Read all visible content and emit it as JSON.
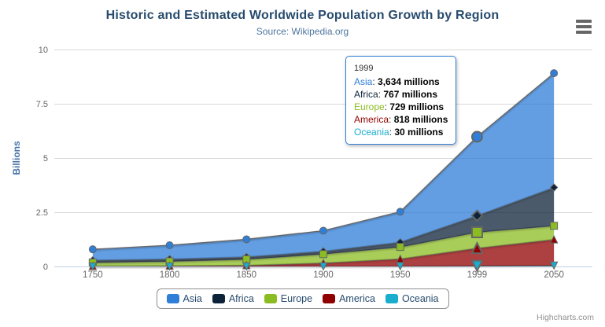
{
  "chart": {
    "title": "Historic and Estimated Worldwide Population Growth by Region",
    "subtitle": "Source: Wikipedia.org",
    "credits": "Highcharts.com"
  },
  "colors": {
    "title": "#274b6d",
    "subtitle": "#4d759e",
    "axis_label": "#666666",
    "axis_title": "#4572A7",
    "gridline": "#d8d8d8",
    "axis_line": "#c0d0e0",
    "series_line": "#666666",
    "legend_text": "#274b6d",
    "legend_border": "#909090",
    "tooltip_border": "#2f7ed8",
    "burger_icon": "#666666",
    "credits_text": "#909090"
  },
  "chart_data": {
    "type": "area",
    "stacking": "normal",
    "title": "Historic and Estimated Worldwide Population Growth by Region",
    "subtitle": "Source: Wikipedia.org",
    "categories": [
      "1750",
      "1800",
      "1850",
      "1900",
      "1950",
      "1999",
      "2050"
    ],
    "series": [
      {
        "name": "Asia",
        "color": "#2f7ed8",
        "marker": "circle",
        "values_millions": [
          502,
          635,
          809,
          947,
          1402,
          3634,
          5268
        ]
      },
      {
        "name": "Africa",
        "color": "#0d233a",
        "marker": "diamond",
        "values_millions": [
          106,
          107,
          111,
          133,
          221,
          767,
          1766
        ]
      },
      {
        "name": "Europe",
        "color": "#8bbc21",
        "marker": "square",
        "values_millions": [
          163,
          203,
          276,
          408,
          547,
          729,
          628
        ]
      },
      {
        "name": "America",
        "color": "#910000",
        "marker": "triangle",
        "values_millions": [
          18,
          31,
          54,
          156,
          339,
          818,
          1201
        ]
      },
      {
        "name": "Oceania",
        "color": "#1aadce",
        "marker": "triangle-down",
        "values_millions": [
          2,
          2,
          2,
          6,
          13,
          30,
          46
        ]
      }
    ],
    "values_unit": "millions",
    "xlabel": "",
    "ylabel": "Billions",
    "ylim": [
      0,
      10
    ],
    "yticks": [
      0,
      2.5,
      5,
      7.5,
      10
    ],
    "grid": true,
    "legend_position": "bottom",
    "hover_category_index": 5,
    "fill_opacity": 0.75
  },
  "tooltip": {
    "header": "1999",
    "unit": "millions",
    "rows": [
      {
        "name": "Asia",
        "value": "3,634",
        "color": "#2f7ed8"
      },
      {
        "name": "Africa",
        "value": "767",
        "color": "#0d233a"
      },
      {
        "name": "Europe",
        "value": "729",
        "color": "#8bbc21"
      },
      {
        "name": "America",
        "value": "818",
        "color": "#910000"
      },
      {
        "name": "Oceania",
        "value": "30",
        "color": "#1aadce"
      }
    ]
  },
  "legend": {
    "items": [
      {
        "label": "Asia",
        "color": "#2f7ed8"
      },
      {
        "label": "Africa",
        "color": "#0d233a"
      },
      {
        "label": "Europe",
        "color": "#8bbc21"
      },
      {
        "label": "America",
        "color": "#910000"
      },
      {
        "label": "Oceania",
        "color": "#1aadce"
      }
    ]
  }
}
